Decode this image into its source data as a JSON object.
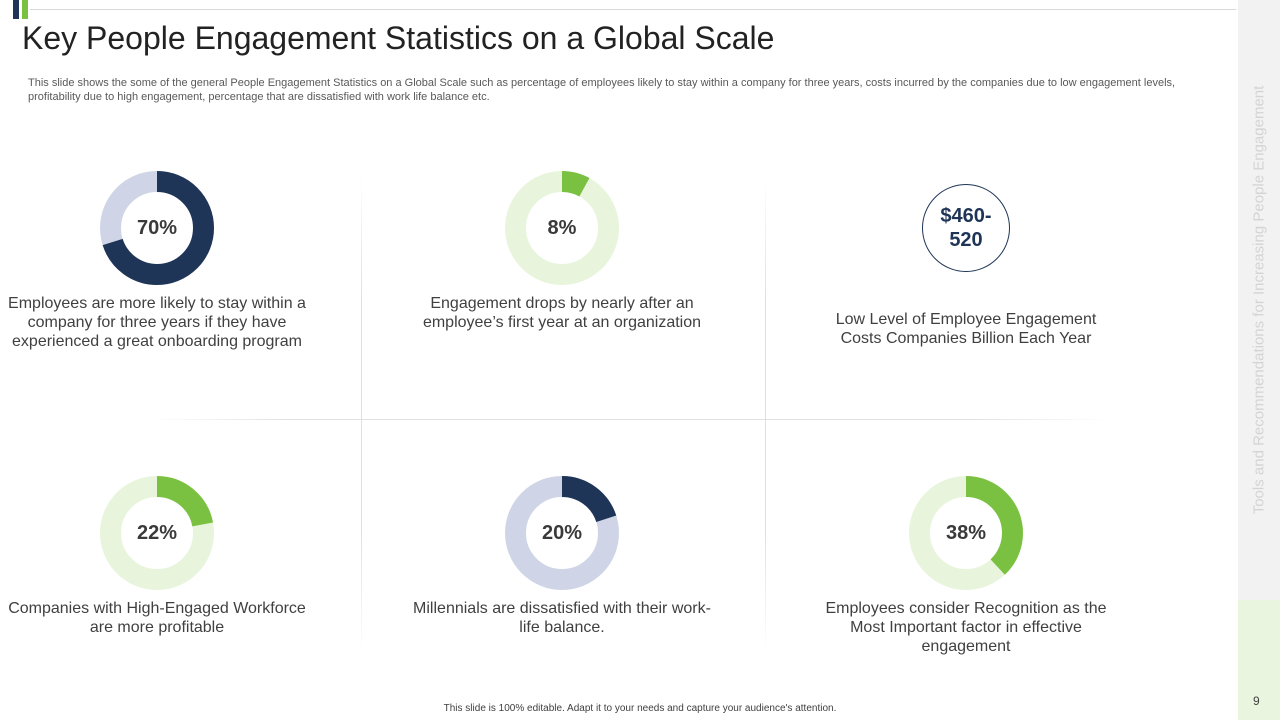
{
  "slide": {
    "title": "Key People Engagement Statistics on a Global Scale",
    "subtitle": "This slide shows the some of the general People Engagement Statistics on a Global Scale such as percentage of employees likely to stay within a company for three years, costs incurred by the companies due to low engagement levels, profitability due to high engagement, percentage that are dissatisfied with work life balance etc.",
    "side_label": "Tools and Recommendations for Increasing People Engagement",
    "page_number": "9",
    "footer": "This slide is 100% editable. Adapt it to your needs and capture your audience's attention."
  },
  "colors": {
    "navy": "#1f3557",
    "green": "#7ac142",
    "light_green": "#e8f5dc",
    "light_blue": "#cfd5e6"
  },
  "stats": [
    {
      "label": "70%",
      "percent": 70,
      "color": "#1f3557",
      "track": "#cfd5e6",
      "desc": "Employees are more likely to stay within a company for three years if they have experienced a great onboarding program"
    },
    {
      "label": "8%",
      "percent": 8,
      "color": "#7ac142",
      "track": "#e8f5dc",
      "desc": "Engagement drops by nearly  after an employee’s first year at an organization"
    },
    {
      "label": "$460-520",
      "desc": "Low Level of Employee Engagement Costs Companies Billion Each Year"
    },
    {
      "label": "22%",
      "percent": 22,
      "color": "#7ac142",
      "track": "#e8f5dc",
      "desc": "Companies with High-Engaged Workforce are more profitable"
    },
    {
      "label": "20%",
      "percent": 20,
      "color": "#1f3557",
      "track": "#cfd5e6",
      "desc": "Millennials  are dissatisfied with their work-life balance."
    },
    {
      "label": "38%",
      "percent": 38,
      "color": "#7ac142",
      "track": "#e8f5dc",
      "desc": "Employees consider Recognition as the Most Important  factor in effective engagement"
    }
  ]
}
